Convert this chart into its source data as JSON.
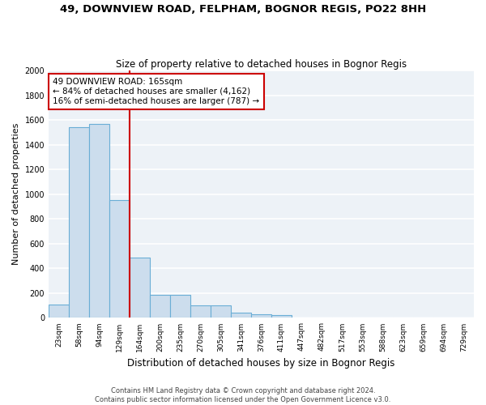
{
  "title": "49, DOWNVIEW ROAD, FELPHAM, BOGNOR REGIS, PO22 8HH",
  "subtitle": "Size of property relative to detached houses in Bognor Regis",
  "xlabel": "Distribution of detached houses by size in Bognor Regis",
  "ylabel": "Number of detached properties",
  "categories": [
    "23sqm",
    "58sqm",
    "94sqm",
    "129sqm",
    "164sqm",
    "200sqm",
    "235sqm",
    "270sqm",
    "305sqm",
    "341sqm",
    "376sqm",
    "411sqm",
    "447sqm",
    "482sqm",
    "517sqm",
    "553sqm",
    "588sqm",
    "623sqm",
    "659sqm",
    "694sqm",
    "729sqm"
  ],
  "values": [
    110,
    1540,
    1570,
    950,
    490,
    185,
    185,
    100,
    100,
    40,
    30,
    20,
    0,
    0,
    0,
    0,
    0,
    0,
    0,
    0,
    0
  ],
  "bar_color": "#ccdded",
  "bar_edge_color": "#6aaed6",
  "vline_index": 4,
  "vline_color": "#cc0000",
  "annotation_text": "49 DOWNVIEW ROAD: 165sqm\n← 84% of detached houses are smaller (4,162)\n16% of semi-detached houses are larger (787) →",
  "annotation_box_color": "white",
  "annotation_box_edge_color": "#cc0000",
  "ylim": [
    0,
    2000
  ],
  "yticks": [
    0,
    200,
    400,
    600,
    800,
    1000,
    1200,
    1400,
    1600,
    1800,
    2000
  ],
  "background_color": "#edf2f7",
  "grid_color": "white",
  "footer": "Contains HM Land Registry data © Crown copyright and database right 2024.\nContains public sector information licensed under the Open Government Licence v3.0."
}
